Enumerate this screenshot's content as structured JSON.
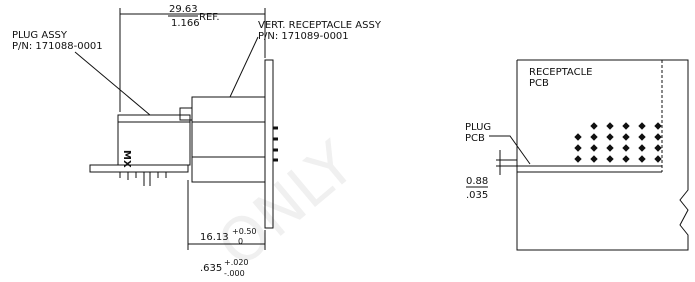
{
  "labels": {
    "plug_assy": "PLUG ASSY",
    "plug_pn": "P/N: 171088-0001",
    "receptacle_assy": "VERT. RECEPTACLE ASSY",
    "receptacle_pn": "P/N: 171089-0001",
    "body_mark": "MX",
    "receptacle_pcb": [
      "RECEPTACLE",
      "PCB"
    ],
    "plug_pcb": [
      "PLUG",
      "PCB"
    ],
    "watermark": "ONLY"
  },
  "dimensions": {
    "overall_length": {
      "metric": "29.63",
      "inch": "1.166",
      "suffix": "REF."
    },
    "height": {
      "metric": "16.13",
      "metric_tol_plus": "+0.50",
      "metric_tol_minus": "0",
      "inch": ".635",
      "inch_tol_plus": "+.020",
      "inch_tol_minus": "-.000"
    },
    "pcb_gap": {
      "metric": "0.88",
      "inch": ".035"
    }
  }
}
